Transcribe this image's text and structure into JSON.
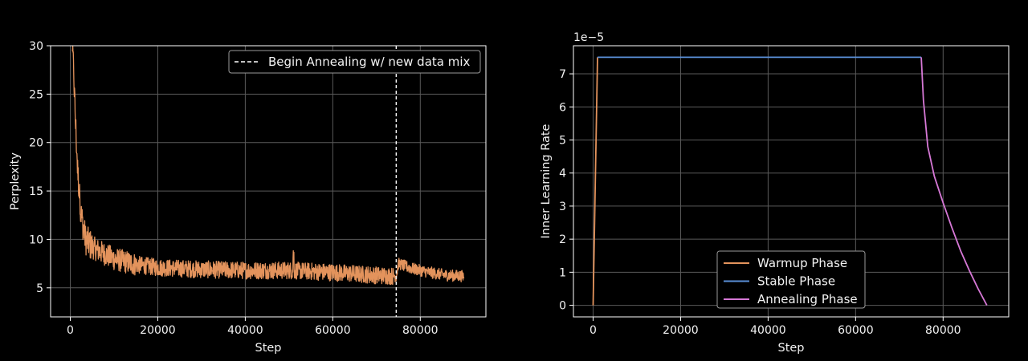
{
  "chart_data": [
    {
      "type": "line",
      "xlabel": "Step",
      "ylabel": "Perplexity",
      "xlim": [
        -4500,
        95000
      ],
      "ylim": [
        2,
        30
      ],
      "xticks": [
        0,
        20000,
        40000,
        60000,
        80000
      ],
      "yticks": [
        5,
        10,
        15,
        20,
        25,
        30
      ],
      "grid": true,
      "legend_position": "top-right",
      "series": [
        {
          "color": "#e3935c",
          "x": [
            500,
            800,
            1200,
            1700,
            2500,
            3500,
            5000,
            7000,
            10000,
            15000,
            20000,
            30000,
            40000,
            50000,
            60000,
            70000,
            74500,
            75000,
            78000,
            82000,
            86000,
            90000
          ],
          "y": [
            30,
            27,
            22,
            17,
            12.5,
            10,
            9.2,
            8.7,
            8.0,
            7.4,
            7.1,
            6.9,
            6.8,
            6.8,
            6.6,
            6.3,
            6.2,
            7.5,
            7.0,
            6.6,
            6.3,
            6.2
          ]
        }
      ],
      "annotations": [
        {
          "type": "vline",
          "x": 74500,
          "style": "dashed",
          "color": "#ffffff",
          "label": "Begin Annealing w/ new data mix"
        }
      ]
    },
    {
      "type": "line",
      "xlabel": "Step",
      "ylabel": "Inner Learning Rate",
      "y_offset_label": "1e−5",
      "xlim": [
        -4500,
        95000
      ],
      "ylim": [
        -0.35,
        7.85
      ],
      "xticks": [
        0,
        20000,
        40000,
        60000,
        80000
      ],
      "yticks": [
        0,
        1,
        2,
        3,
        4,
        5,
        6,
        7
      ],
      "grid": true,
      "legend_position": "lower-center",
      "series": [
        {
          "name": "Warmup Phase",
          "color": "#e3935c",
          "x": [
            0,
            1000
          ],
          "y": [
            0,
            7.5
          ]
        },
        {
          "name": "Stable Phase",
          "color": "#5a8fd8",
          "x": [
            1000,
            75000
          ],
          "y": [
            7.5,
            7.5
          ]
        },
        {
          "name": "Annealing Phase",
          "color": "#d678d6",
          "x": [
            75000,
            75500,
            76500,
            78000,
            80000,
            82000,
            84000,
            86000,
            88000,
            90000
          ],
          "y": [
            7.5,
            6.2,
            4.8,
            3.9,
            3.1,
            2.35,
            1.65,
            1.05,
            0.5,
            0
          ]
        }
      ]
    }
  ]
}
